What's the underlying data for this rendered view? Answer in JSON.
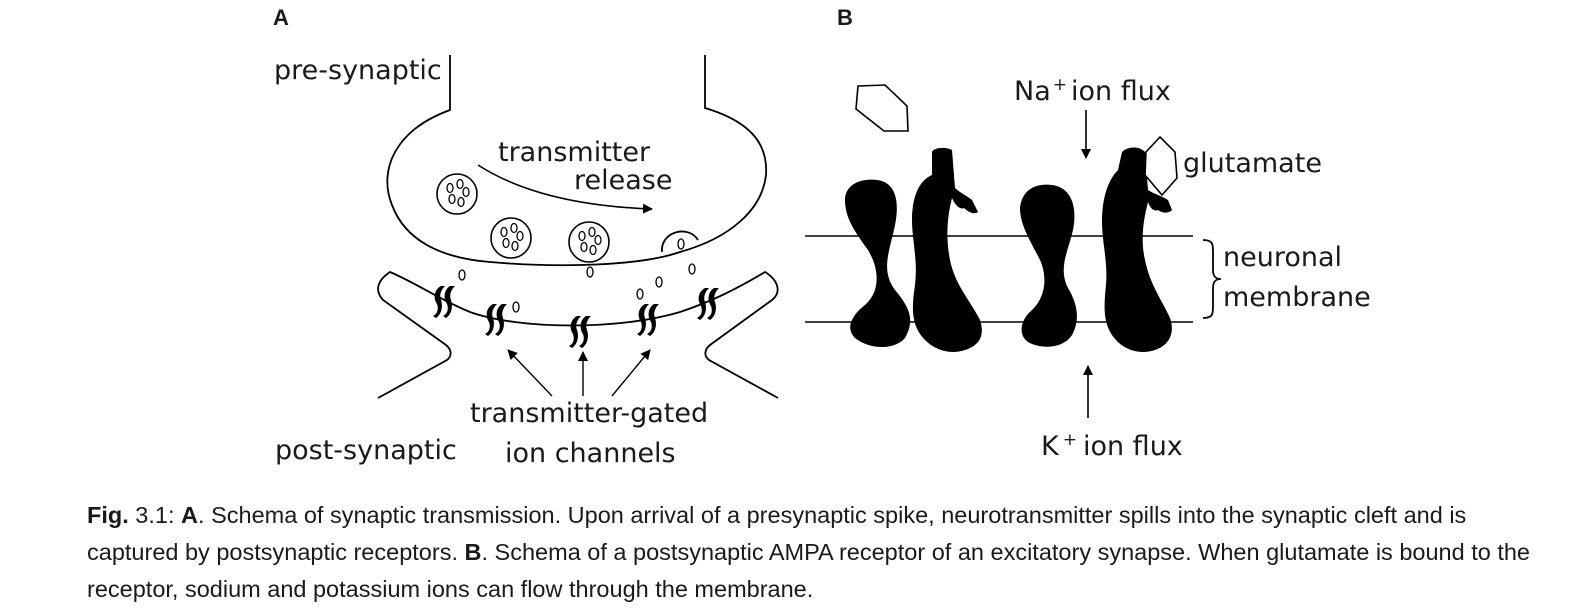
{
  "panels": {
    "a": {
      "letter": "A",
      "labels": {
        "pre_synaptic": "pre-synaptic",
        "transmitter_line1": "transmitter",
        "transmitter_line2": "release",
        "post_synaptic": "post-synaptic",
        "gated_line1": "transmitter-gated",
        "gated_line2": "ion channels"
      }
    },
    "b": {
      "letter": "B",
      "labels": {
        "na_symbol": "Na",
        "na_charge": "+",
        "na_text": "ion flux",
        "glutamate": "glutamate",
        "membrane_line1": "neuronal",
        "membrane_line2": "membrane",
        "k_symbol": "K",
        "k_charge": "+",
        "k_text": "ion flux"
      }
    }
  },
  "caption": {
    "fig_label": "Fig.",
    "fig_number": " 3.1: ",
    "a_label": "A",
    "a_text": ". Schema of synaptic transmission. Upon arrival of a presynaptic spike, neurotransmitter spills into the synaptic cleft and is captured by postsynaptic receptors. ",
    "b_label": "B",
    "b_text": ". Schema of a postsynaptic AMPA receptor of an excitatory synapse. When glutamate is bound to the receptor, sodium and potassium ions can flow through the membrane."
  },
  "colors": {
    "ink": "#000000",
    "text": "#1a1a1a",
    "background": "#ffffff"
  }
}
